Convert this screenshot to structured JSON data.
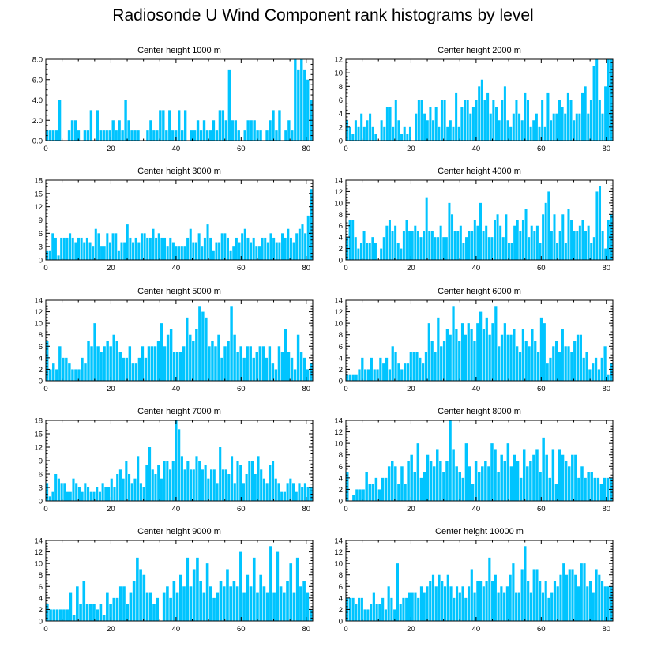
{
  "figure": {
    "title": "Radiosonde U Wind Component rank histograms by level",
    "bar_color": "#00c4ff"
  },
  "chart_data": [
    {
      "type": "bar",
      "title": "Center height 1000 m",
      "xlim": [
        0,
        82
      ],
      "ylim": [
        0,
        8
      ],
      "xticks": [
        0,
        20,
        40,
        60,
        80
      ],
      "yticks": [
        0,
        2,
        4,
        6,
        8
      ],
      "ytick_labels": [
        "0.0",
        "2.0",
        "4.0",
        "6.0",
        "8.0"
      ],
      "values": [
        1,
        1,
        1,
        1,
        4,
        0,
        0,
        1,
        2,
        2,
        1,
        0,
        1,
        1,
        3,
        0,
        3,
        1,
        1,
        1,
        1,
        2,
        1,
        2,
        1,
        4,
        2,
        1,
        1,
        1,
        0,
        0,
        1,
        2,
        1,
        1,
        3,
        3,
        1,
        3,
        1,
        1,
        3,
        1,
        3,
        0,
        1,
        1,
        2,
        1,
        2,
        1,
        1,
        2,
        1,
        3,
        3,
        2,
        7,
        2,
        2,
        1,
        0,
        1,
        2,
        2,
        2,
        1,
        1,
        0,
        1,
        2,
        3,
        1,
        3,
        0,
        1,
        2,
        1,
        8,
        7,
        8,
        7,
        6,
        4
      ]
    },
    {
      "type": "bar",
      "title": "Center height 2000 m",
      "xlim": [
        0,
        82
      ],
      "ylim": [
        0,
        12
      ],
      "xticks": [
        0,
        20,
        40,
        60,
        80
      ],
      "yticks": [
        0,
        2,
        4,
        6,
        8,
        10,
        12
      ],
      "values": [
        3,
        2,
        1,
        3,
        2,
        4,
        2,
        3,
        4,
        2,
        1,
        0,
        3,
        2,
        5,
        5,
        2,
        6,
        3,
        1,
        2,
        1,
        2,
        0,
        4,
        6,
        6,
        4,
        3,
        5,
        3,
        5,
        2,
        6,
        6,
        2,
        3,
        2,
        7,
        2,
        5,
        6,
        6,
        4,
        5,
        6,
        8,
        9,
        6,
        7,
        4,
        6,
        5,
        3,
        6,
        8,
        3,
        2,
        4,
        6,
        4,
        3,
        7,
        6,
        2,
        3,
        4,
        2,
        6,
        2,
        7,
        3,
        4,
        4,
        6,
        5,
        4,
        7,
        6,
        3,
        4,
        4,
        7,
        8,
        4,
        6,
        11,
        12,
        6,
        4,
        8,
        12,
        12
      ]
    },
    {
      "type": "bar",
      "title": "Center height 3000 m",
      "xlim": [
        0,
        82
      ],
      "ylim": [
        0,
        18
      ],
      "xticks": [
        0,
        20,
        40,
        60,
        80
      ],
      "yticks": [
        0,
        3,
        6,
        9,
        12,
        15,
        18
      ],
      "values": [
        2,
        2,
        6,
        5,
        1,
        5,
        5,
        5,
        6,
        5,
        4,
        5,
        5,
        4,
        5,
        4,
        3,
        7,
        6,
        3,
        3,
        6,
        4,
        6,
        6,
        2,
        4,
        4,
        8,
        5,
        4,
        5,
        4,
        6,
        6,
        5,
        5,
        7,
        5,
        6,
        5,
        5,
        3,
        5,
        4,
        3,
        3,
        3,
        3,
        5,
        7,
        4,
        4,
        6,
        3,
        5,
        8,
        5,
        2,
        4,
        4,
        6,
        6,
        5,
        2,
        3,
        5,
        4,
        6,
        7,
        5,
        4,
        5,
        3,
        3,
        5,
        5,
        4,
        6,
        5,
        4,
        4,
        6,
        5,
        7,
        5,
        4,
        6,
        7,
        8,
        6,
        10,
        16
      ]
    },
    {
      "type": "bar",
      "title": "Center height 4000 m",
      "xlim": [
        0,
        82
      ],
      "ylim": [
        0,
        14
      ],
      "xticks": [
        0,
        20,
        40,
        60,
        80
      ],
      "yticks": [
        0,
        2,
        4,
        6,
        8,
        10,
        12,
        14
      ],
      "values": [
        4,
        7,
        7,
        4,
        2,
        3,
        5,
        3,
        3,
        4,
        3,
        0,
        2,
        4,
        6,
        7,
        5,
        6,
        3,
        2,
        5,
        7,
        5,
        5,
        6,
        5,
        4,
        5,
        11,
        5,
        5,
        4,
        4,
        6,
        4,
        4,
        10,
        8,
        5,
        5,
        6,
        3,
        4,
        5,
        5,
        7,
        6,
        10,
        5,
        6,
        4,
        4,
        7,
        8,
        6,
        4,
        8,
        3,
        3,
        6,
        7,
        5,
        7,
        9,
        4,
        6,
        5,
        6,
        3,
        8,
        10,
        12,
        5,
        8,
        3,
        5,
        8,
        3,
        9,
        7,
        5,
        5,
        6,
        7,
        5,
        6,
        3,
        4,
        12,
        13,
        5,
        2,
        7,
        8
      ]
    },
    {
      "type": "bar",
      "title": "Center height 5000 m",
      "xlim": [
        0,
        82
      ],
      "ylim": [
        0,
        14
      ],
      "xticks": [
        0,
        20,
        40,
        60,
        80
      ],
      "yticks": [
        0,
        2,
        4,
        6,
        8,
        10,
        12,
        14
      ],
      "values": [
        7,
        2,
        3,
        2,
        6,
        4,
        4,
        3,
        2,
        2,
        2,
        4,
        3,
        7,
        6,
        10,
        6,
        5,
        6,
        7,
        6,
        8,
        7,
        5,
        4,
        4,
        6,
        3,
        3,
        4,
        6,
        4,
        6,
        6,
        6,
        7,
        10,
        6,
        8,
        9,
        5,
        5,
        5,
        6,
        11,
        8,
        7,
        9,
        13,
        12,
        11,
        6,
        7,
        6,
        8,
        4,
        6,
        7,
        13,
        8,
        5,
        6,
        4,
        6,
        6,
        4,
        5,
        6,
        6,
        4,
        6,
        3,
        2,
        6,
        5,
        9,
        5,
        4,
        2,
        8,
        5,
        4,
        2,
        3
      ]
    },
    {
      "type": "bar",
      "title": "Center height 6000 m",
      "xlim": [
        0,
        82
      ],
      "ylim": [
        0,
        14
      ],
      "xticks": [
        0,
        20,
        40,
        60,
        80
      ],
      "yticks": [
        0,
        2,
        4,
        6,
        8,
        10,
        12,
        14
      ],
      "values": [
        1,
        1,
        1,
        1,
        2,
        4,
        2,
        2,
        4,
        2,
        2,
        4,
        3,
        4,
        2,
        6,
        5,
        3,
        2,
        3,
        3,
        5,
        5,
        5,
        4,
        3,
        5,
        10,
        7,
        5,
        11,
        6,
        7,
        9,
        8,
        13,
        9,
        7,
        10,
        8,
        10,
        9,
        7,
        10,
        12,
        9,
        11,
        8,
        10,
        13,
        6,
        8,
        10,
        8,
        8,
        9,
        6,
        5,
        9,
        7,
        6,
        9,
        7,
        5,
        11,
        10,
        3,
        4,
        6,
        7,
        5,
        9,
        6,
        6,
        5,
        7,
        8,
        8,
        4,
        5,
        2,
        3,
        4,
        2,
        4,
        6,
        1,
        3
      ]
    },
    {
      "type": "bar",
      "title": "Center height 7000 m",
      "xlim": [
        0,
        82
      ],
      "ylim": [
        0,
        18
      ],
      "xticks": [
        0,
        20,
        40,
        60,
        80
      ],
      "yticks": [
        0,
        3,
        6,
        9,
        12,
        15,
        18
      ],
      "values": [
        4,
        1,
        2,
        6,
        5,
        4,
        4,
        2,
        2,
        5,
        4,
        3,
        2,
        4,
        3,
        2,
        2,
        3,
        2,
        4,
        3,
        3,
        5,
        3,
        6,
        7,
        5,
        9,
        6,
        4,
        5,
        10,
        4,
        3,
        8,
        12,
        7,
        6,
        8,
        5,
        9,
        9,
        7,
        9,
        18,
        16,
        10,
        7,
        9,
        7,
        7,
        10,
        9,
        7,
        8,
        5,
        7,
        7,
        4,
        12,
        7,
        7,
        6,
        10,
        4,
        9,
        8,
        4,
        6,
        9,
        9,
        6,
        10,
        7,
        5,
        4,
        8,
        9,
        5,
        4,
        2,
        2,
        4,
        5,
        4,
        2,
        4,
        3,
        4,
        3,
        3
      ]
    },
    {
      "type": "bar",
      "title": "Center height 8000 m",
      "xlim": [
        0,
        82
      ],
      "ylim": [
        0,
        14
      ],
      "xticks": [
        0,
        20,
        40,
        60,
        80
      ],
      "yticks": [
        0,
        2,
        4,
        6,
        8,
        10,
        12,
        14
      ],
      "values": [
        5,
        0,
        1,
        2,
        2,
        2,
        5,
        3,
        3,
        4,
        2,
        4,
        4,
        6,
        7,
        6,
        3,
        6,
        3,
        7,
        8,
        5,
        10,
        4,
        5,
        8,
        7,
        6,
        9,
        7,
        5,
        7,
        14,
        9,
        6,
        5,
        4,
        10,
        6,
        3,
        7,
        5,
        6,
        7,
        6,
        10,
        9,
        5,
        8,
        7,
        10,
        6,
        8,
        7,
        4,
        9,
        6,
        7,
        8,
        9,
        5,
        11,
        8,
        4,
        9,
        3,
        9,
        8,
        7,
        6,
        8,
        8,
        4,
        6,
        4,
        5,
        5,
        4,
        4,
        3,
        4,
        4,
        4
      ]
    },
    {
      "type": "bar",
      "title": "Center height 9000 m",
      "xlim": [
        0,
        82
      ],
      "ylim": [
        0,
        14
      ],
      "xticks": [
        0,
        20,
        40,
        60,
        80
      ],
      "yticks": [
        0,
        2,
        4,
        6,
        8,
        10,
        12,
        14
      ],
      "values": [
        3,
        2,
        2,
        2,
        2,
        2,
        2,
        5,
        1,
        6,
        3,
        7,
        3,
        3,
        3,
        2,
        3,
        1,
        5,
        3,
        4,
        4,
        6,
        6,
        3,
        5,
        7,
        11,
        9,
        8,
        5,
        5,
        3,
        4,
        0,
        5,
        6,
        4,
        7,
        5,
        8,
        6,
        11,
        6,
        9,
        11,
        7,
        5,
        10,
        6,
        4,
        5,
        7,
        6,
        9,
        6,
        7,
        6,
        12,
        5,
        8,
        6,
        11,
        5,
        8,
        6,
        5,
        13,
        5,
        12,
        6,
        5,
        7,
        10,
        5,
        11,
        6,
        7,
        5,
        2
      ]
    },
    {
      "type": "bar",
      "title": "Center height 10000 m",
      "xlim": [
        0,
        82
      ],
      "ylim": [
        0,
        14
      ],
      "xticks": [
        0,
        20,
        40,
        60,
        80
      ],
      "yticks": [
        0,
        2,
        4,
        6,
        8,
        10,
        12,
        14
      ],
      "values": [
        4,
        4,
        4,
        3,
        4,
        4,
        2,
        2,
        3,
        5,
        3,
        3,
        4,
        2,
        6,
        4,
        2,
        10,
        3,
        4,
        4,
        5,
        5,
        5,
        4,
        6,
        5,
        6,
        7,
        8,
        6,
        8,
        7,
        6,
        8,
        6,
        4,
        6,
        5,
        6,
        4,
        6,
        9,
        5,
        7,
        7,
        6,
        7,
        11,
        7,
        8,
        5,
        6,
        5,
        6,
        8,
        10,
        5,
        5,
        9,
        13,
        7,
        5,
        9,
        9,
        7,
        5,
        7,
        4,
        5,
        7,
        6,
        8,
        10,
        8,
        9,
        9,
        8,
        6,
        10,
        10,
        6,
        7,
        5,
        9,
        8,
        7,
        6,
        6,
        6
      ]
    }
  ]
}
